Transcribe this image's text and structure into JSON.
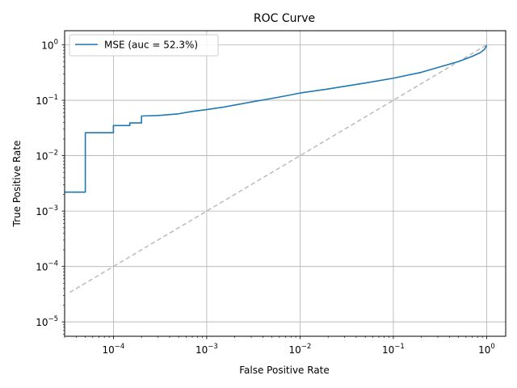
{
  "chart_data": {
    "type": "line",
    "title": "ROC Curve",
    "xlabel": "False Positive Rate",
    "ylabel": "True Positive Rate",
    "xscale": "log",
    "yscale": "log",
    "xlim": [
      3e-05,
      1.6
    ],
    "ylim": [
      5.5e-06,
      1.8
    ],
    "grid": true,
    "legend": {
      "placement": "top-left",
      "entries": [
        "MSE (auc = 52.3%)"
      ]
    },
    "xticks": [
      {
        "base": "10",
        "exp": "−4",
        "value": 0.0001
      },
      {
        "base": "10",
        "exp": "−3",
        "value": 0.001
      },
      {
        "base": "10",
        "exp": "−2",
        "value": 0.01
      },
      {
        "base": "10",
        "exp": "−1",
        "value": 0.1
      },
      {
        "base": "10",
        "exp": "0",
        "value": 1
      }
    ],
    "yticks": [
      {
        "base": "10",
        "exp": "−5",
        "value": 1e-05
      },
      {
        "base": "10",
        "exp": "−4",
        "value": 0.0001
      },
      {
        "base": "10",
        "exp": "−3",
        "value": 0.001
      },
      {
        "base": "10",
        "exp": "−2",
        "value": 0.01
      },
      {
        "base": "10",
        "exp": "−1",
        "value": 0.1
      },
      {
        "base": "10",
        "exp": "0",
        "value": 1
      }
    ],
    "series": [
      {
        "name": "MSE (auc = 52.3%)",
        "color": "#1f77b4",
        "style": "step",
        "x": [
          3e-05,
          5e-05,
          5e-05,
          0.0001,
          0.0001,
          0.00015,
          0.00015,
          0.0002,
          0.0002,
          0.0003,
          0.0005,
          0.0007,
          0.001,
          0.0015,
          0.002,
          0.003,
          0.005,
          0.007,
          0.01,
          0.02,
          0.05,
          0.1,
          0.2,
          0.3,
          0.5,
          0.7,
          0.85,
          0.95,
          1.0
        ],
        "y": [
          0.0022,
          0.0022,
          0.026,
          0.026,
          0.035,
          0.035,
          0.039,
          0.039,
          0.052,
          0.053,
          0.057,
          0.063,
          0.068,
          0.075,
          0.082,
          0.093,
          0.108,
          0.12,
          0.135,
          0.16,
          0.205,
          0.25,
          0.32,
          0.39,
          0.5,
          0.62,
          0.72,
          0.83,
          0.98
        ]
      },
      {
        "name": "",
        "color": "#bbbbbb",
        "style": "dashed",
        "x": [
          3.4e-05,
          1.0
        ],
        "y": [
          3.4e-05,
          1.0
        ]
      }
    ]
  }
}
